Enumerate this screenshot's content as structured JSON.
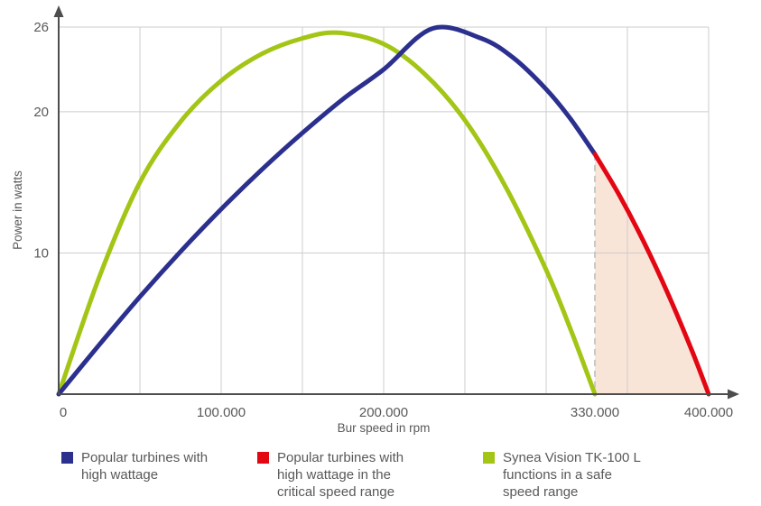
{
  "chart_data": {
    "type": "line",
    "title": "",
    "xlabel": "Bur speed in rpm",
    "ylabel": "Power in watts",
    "xlim": [
      0,
      400000
    ],
    "ylim": [
      0,
      26
    ],
    "grid": true,
    "x_ticks": [
      {
        "value": 0,
        "label": "0"
      },
      {
        "value": 100000,
        "label": "100.000"
      },
      {
        "value": 200000,
        "label": "200.000"
      },
      {
        "value": 330000,
        "label": "330.000"
      },
      {
        "value": 400000,
        "label": "400.000"
      }
    ],
    "y_ticks": [
      {
        "value": 10,
        "label": "10"
      },
      {
        "value": 20,
        "label": "20"
      },
      {
        "value": 26,
        "label": "26"
      }
    ],
    "x_gridlines": [
      50000,
      100000,
      150000,
      200000,
      250000,
      300000,
      350000,
      400000
    ],
    "y_gridlines": [
      10,
      20,
      26
    ],
    "series": [
      {
        "key": "blue",
        "name": "Popular turbines with high wattage",
        "color": "#2b2f8e",
        "x": [
          0,
          25000,
          50000,
          75000,
          100000,
          125000,
          150000,
          175000,
          200000,
          230000,
          260000,
          280000,
          300000,
          315000,
          330000
        ],
        "y": [
          0,
          3.5,
          6.9,
          10.1,
          13.1,
          15.9,
          18.5,
          20.9,
          23.0,
          25.9,
          25.2,
          23.8,
          21.6,
          19.5,
          17.0
        ]
      },
      {
        "key": "red",
        "name": "Popular turbines with high wattage in the critical speed range",
        "color": "#e30613",
        "x": [
          330000,
          345000,
          360000,
          375000,
          390000,
          400000
        ],
        "y": [
          17.0,
          14.1,
          10.8,
          7.1,
          3.0,
          0
        ]
      },
      {
        "key": "green",
        "name": "Synea Vision TK-100 L functions in a safe speed range",
        "color": "#a3c515",
        "x": [
          0,
          25000,
          50000,
          75000,
          100000,
          125000,
          150000,
          172000,
          200000,
          225000,
          250000,
          275000,
          300000,
          315000,
          330000
        ],
        "y": [
          0,
          8.3,
          15.0,
          19.3,
          22.2,
          24.1,
          25.2,
          25.6,
          24.8,
          22.7,
          19.4,
          14.7,
          8.8,
          4.6,
          0
        ]
      }
    ],
    "critical_boundary": {
      "x": 330000,
      "y_top": 17.0
    },
    "shaded_region": {
      "from": 330000,
      "to": 400000,
      "color": "#f9e4d8"
    },
    "legend_position": "bottom"
  },
  "legend": {
    "items": [
      {
        "key": "blue",
        "color": "#2b2f8e",
        "lines": [
          "Popular turbines with",
          "high wattage"
        ]
      },
      {
        "key": "red",
        "color": "#e30613",
        "lines": [
          "Popular turbines with",
          "high wattage in the",
          "critical speed range"
        ]
      },
      {
        "key": "green",
        "color": "#a3c515",
        "lines": [
          "Synea Vision TK-100 L",
          "functions in a safe",
          "speed range"
        ]
      }
    ]
  }
}
